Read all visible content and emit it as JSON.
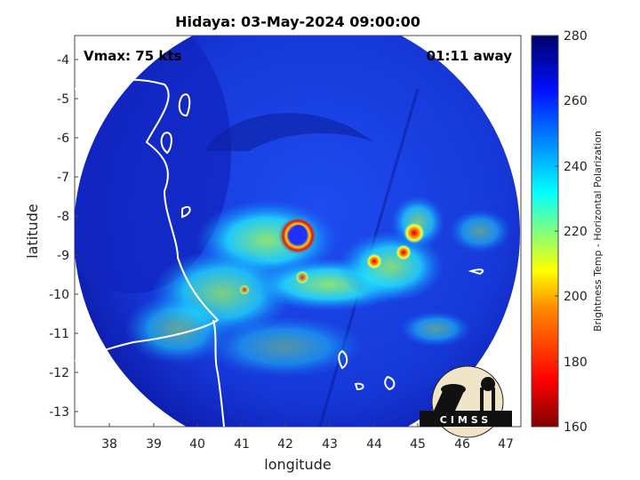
{
  "title": "Hidaya: 03-May-2024 09:00:00",
  "vmax_label": "Vmax: 75 kts",
  "time_away": "01:11 away",
  "xlabel": "longitude",
  "ylabel": "latitude",
  "x_ticks": [
    "38",
    "39",
    "40",
    "41",
    "42",
    "43",
    "44",
    "45",
    "46",
    "47"
  ],
  "y_ticks": [
    "-4",
    "-5",
    "-6",
    "-7",
    "-8",
    "-9",
    "-10",
    "-11",
    "-12",
    "-13"
  ],
  "colorbar": {
    "label": "Brightness Temp - Horizontal Polarization",
    "ticks": [
      "280",
      "260",
      "240",
      "220",
      "200",
      "180",
      "160"
    ],
    "min": 160,
    "max": 280,
    "colors": [
      "#7f0000",
      "#ff0000",
      "#ff8000",
      "#ffff00",
      "#80ff80",
      "#00ffff",
      "#0080ff",
      "#0000ff",
      "#00007f"
    ]
  },
  "logo_text": "CIMSS",
  "storm_center": {
    "lon": 42.3,
    "lat": -8.5
  }
}
